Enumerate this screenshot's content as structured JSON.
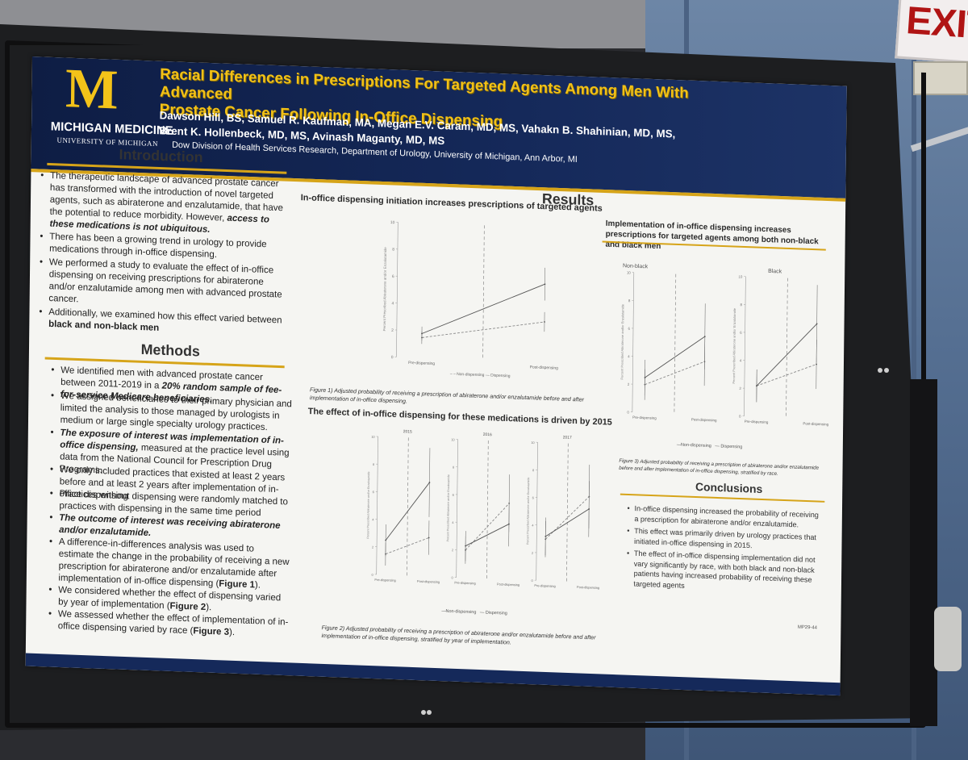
{
  "sign": {
    "text": "EXIT"
  },
  "poster": {
    "logo": {
      "mark": "M",
      "name": "MICHIGAN MEDICINE",
      "sub": "UNIVERSITY OF MICHIGAN"
    },
    "title_line1": "Racial Differences in Prescriptions For Targeted Agents Among Men With Advanced",
    "title_line2": "Prostate Cancer Following In-Office Dispensing",
    "authors_line1": "Dawson Hill, BS, Samuel R. Kaufman, MA, Megan E.V. Caram, MD, MS, Vahakn B. Shahinian, MD, MS,",
    "authors_line2": "Brent K. Hollenbeck, MD, MS, Avinash Maganty, MD, MS",
    "affiliation": "Dow Division of Health Services Research, Department of Urology, University of Michigan, Ann Arbor, MI",
    "introduction": {
      "heading": "Introduction",
      "b1_a": "The therapeutic landscape of advanced prostate cancer has transformed with the introduction of novel targeted agents, such as abiraterone and enzalutamide, that have the potential to reduce morbidity. However, ",
      "b1_b": "access to these medications is not ubiquitous.",
      "b2": "There has been a growing trend in urology to provide medications through in-office dispensing.",
      "b3": "We performed a study to evaluate the effect of in-office dispensing on receiving prescriptions for abiraterone and/or enzalutamide among men with advanced prostate cancer.",
      "b4_a": "Additionally, we examined how this effect varied between ",
      "b4_b": "black and non-black men"
    },
    "methods": {
      "heading": "Methods",
      "b1_a": "We identified men with advanced prostate cancer between 2011-2019 in a ",
      "b1_b": "20% random sample of fee-for-service Medicare beneficiaries.",
      "b2": "We assigned beneficiaries to their primary physician and limited the analysis to those managed by urologists in medium or large single specialty urology practices.",
      "b3_a": "The exposure of interest was implementation of in-office dispensing,",
      "b3_b": " measured at the practice level using data from the National Council for Prescription Drug Programs.",
      "b4": "We only included practices that existed at least 2 years before and at least 2 years after implementation of in-office dispensing",
      "b5": "Practices without dispensing were randomly matched to practices with dispensing in the same time period",
      "b6": "The outcome of interest was receiving abiraterone and/or enzalutamide.",
      "b7_a": "A difference-in-differences analysis was used to estimate the change in the probability of receiving a new prescription for abiraterone and/or enzalutamide after implementation of in-office dispensing (",
      "b7_b": "Figure 1",
      "b7_c": ").",
      "b8_a": "We considered whether the effect of dispensing varied by year of implementation (",
      "b8_b": "Figure 2",
      "b8_c": ").",
      "b9_a": "We assessed whether the effect of implementation of in-office dispensing varied by race (",
      "b9_b": "Figure 3",
      "b9_c": ")."
    },
    "results": {
      "heading": "Results",
      "fig1_heading": "In-office dispensing initiation increases prescriptions of targeted agents",
      "fig1_caption": "Figure 1) Adjusted probability of receiving a prescription of abiraterone and/or enzalutamide before and after implementation of in-office dispensing.",
      "fig2_heading": "The effect of in-office dispensing for these medications is driven by 2015",
      "fig2_caption": "Figure 2) Adjusted probability of receiving a prescription of abiraterone and/or enzalutamide before and after implementation of in-office dispensing, stratified by year of implementation.",
      "fig3_heading": "Implementation of in-office dispensing increases prescriptions for targeted agents among both non-black and black men",
      "fig3_caption": "Figure 3) Adjusted probability of receiving a prescription of abiraterone and/or enzalutamide before and after implementation of in-office dispensing, stratified by race.",
      "xt_pre": "Pre-dispensing",
      "xt_post": "Post-dispensing",
      "legend_non": "Non-dispensing",
      "legend_disp": "Dispensing",
      "ylabel": "Percent Prescribed Abiraterone and/or Enzalutamide",
      "fig2_panels": [
        "2015",
        "2016",
        "2017"
      ],
      "fig3_panels": [
        "Non-black",
        "Black"
      ]
    },
    "conclusions": {
      "heading": "Conclusions",
      "b1": "In-office dispensing increased the probability of receiving a prescription for abiraterone and/or enzalutamide.",
      "b2": "This effect was primarily driven by urology practices that initiated in-office dispensing in 2015.",
      "b3": "The effect of in-office dispensing implementation did not vary significantly by race, with both black and non-black patients having increased probability of receiving these targeted agents"
    },
    "poster_code": "MP29-44"
  },
  "chart_data": [
    {
      "type": "line",
      "title": "In-office dispensing initiation increases prescriptions of targeted agents",
      "xlabel": "",
      "ylabel": "Percent Prescribed Abiraterone and/or Enzalutamide",
      "categories": [
        "Pre-dispensing",
        "Post-dispensing"
      ],
      "ylim": [
        0,
        10
      ],
      "series": [
        {
          "name": "Non-dispensing",
          "values": [
            1.5,
            3.0
          ]
        },
        {
          "name": "Dispensing",
          "values": [
            1.8,
            5.8
          ]
        }
      ]
    },
    {
      "type": "line",
      "title": "2015",
      "categories": [
        "Pre-dispensing",
        "Post-dispensing"
      ],
      "ylim": [
        0,
        10
      ],
      "series": [
        {
          "name": "Non-dispensing",
          "values": [
            1.5,
            2.8
          ]
        },
        {
          "name": "Dispensing",
          "values": [
            2.5,
            6.8
          ]
        }
      ]
    },
    {
      "type": "line",
      "title": "2016",
      "categories": [
        "Pre-dispensing",
        "Post-dispensing"
      ],
      "ylim": [
        0,
        10
      ],
      "series": [
        {
          "name": "Non-dispensing",
          "values": [
            2.0,
            5.5
          ]
        },
        {
          "name": "Dispensing",
          "values": [
            2.3,
            4.0
          ]
        }
      ]
    },
    {
      "type": "line",
      "title": "2017",
      "categories": [
        "Pre-dispensing",
        "Post-dispensing"
      ],
      "ylim": [
        0,
        10
      ],
      "series": [
        {
          "name": "Non-dispensing",
          "values": [
            3.0,
            6.2
          ]
        },
        {
          "name": "Dispensing",
          "values": [
            3.2,
            5.3
          ]
        }
      ]
    },
    {
      "type": "line",
      "title": "Non-black",
      "categories": [
        "Pre-dispensing",
        "Post-dispensing"
      ],
      "ylim": [
        0,
        10
      ],
      "series": [
        {
          "name": "Non-dispensing",
          "values": [
            2.0,
            3.8
          ]
        },
        {
          "name": "Dispensing",
          "values": [
            2.5,
            5.6
          ]
        }
      ]
    },
    {
      "type": "line",
      "title": "Black",
      "categories": [
        "Pre-dispensing",
        "Post-dispensing"
      ],
      "ylim": [
        0,
        10
      ],
      "series": [
        {
          "name": "Non-dispensing",
          "values": [
            2.2,
            3.9
          ]
        },
        {
          "name": "Dispensing",
          "values": [
            2.2,
            6.8
          ]
        }
      ]
    }
  ]
}
